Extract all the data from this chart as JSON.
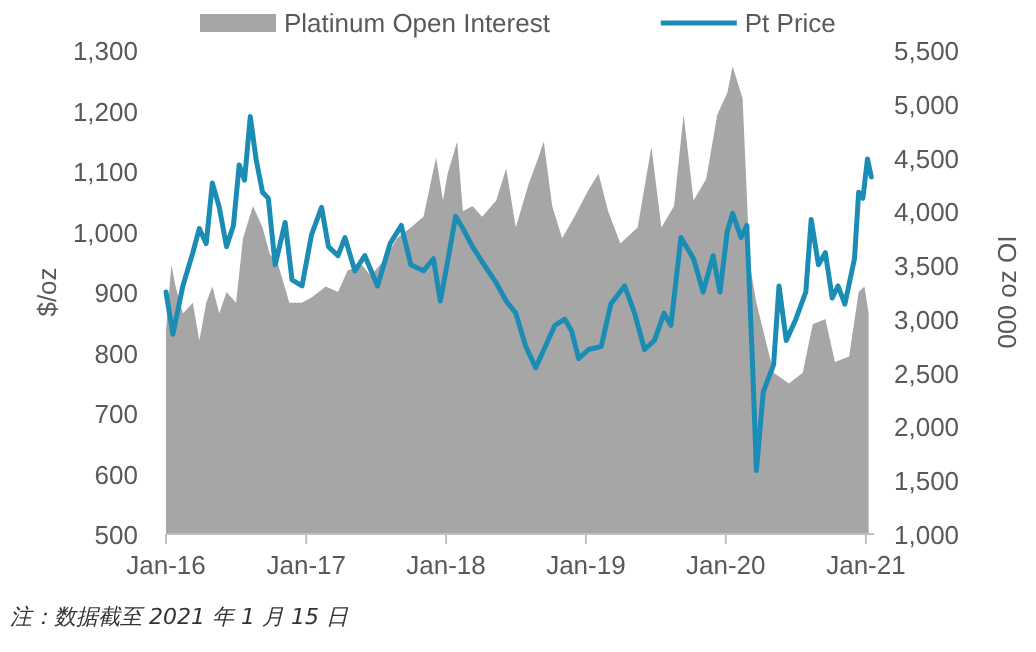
{
  "chart_data": {
    "type": "line",
    "ylabel": "$/oz",
    "y2label": "000 oz OI",
    "legend": "top",
    "annotations": [
      "注：数据截至 2021 年 1 月 15 日"
    ],
    "xlim": [
      "2016-01-01",
      "2021-01-22"
    ],
    "xticks": [
      {
        "value": "2016-01-01",
        "label": "Jan-16"
      },
      {
        "value": "2017-01-01",
        "label": "Jan-17"
      },
      {
        "value": "2018-01-01",
        "label": "Jan-18"
      },
      {
        "value": "2019-01-01",
        "label": "Jan-19"
      },
      {
        "value": "2020-01-01",
        "label": "Jan-20"
      },
      {
        "value": "2021-01-01",
        "label": "Jan-21"
      }
    ],
    "ylim": [
      500,
      1300
    ],
    "yticks": [
      500,
      600,
      700,
      800,
      900,
      {
        "value": 1000,
        "label": "1,000"
      },
      {
        "value": 1100,
        "label": "1,100"
      },
      {
        "value": 1200,
        "label": "1,200"
      },
      {
        "value": 1300,
        "label": "1,300"
      }
    ],
    "y2lim": [
      1000,
      5500
    ],
    "y2ticks": [
      {
        "value": 1000,
        "label": "1,000"
      },
      {
        "value": 1500,
        "label": "1,500"
      },
      {
        "value": 2000,
        "label": "2,000"
      },
      {
        "value": 2500,
        "label": "2,500"
      },
      {
        "value": 3000,
        "label": "3,000"
      },
      {
        "value": 3500,
        "label": "3,500"
      },
      {
        "value": 4000,
        "label": "4,000"
      },
      {
        "value": 4500,
        "label": "4,500"
      },
      {
        "value": 5000,
        "label": "5,000"
      },
      {
        "value": 5500,
        "label": "5,500"
      }
    ],
    "series": [
      {
        "name": "Platinum Open Interest",
        "type": "area",
        "axis": "y2",
        "color": "#a6a6a6",
        "x": [
          "2016-01-01",
          "2016-01-15",
          "2016-01-26",
          "2016-02-14",
          "2016-03-11",
          "2016-03-28",
          "2016-04-15",
          "2016-05-01",
          "2016-05-19",
          "2016-06-07",
          "2016-07-02",
          "2016-07-20",
          "2016-08-15",
          "2016-09-09",
          "2016-09-28",
          "2016-10-20",
          "2016-11-18",
          "2016-12-21",
          "2017-01-15",
          "2017-02-21",
          "2017-03-25",
          "2017-04-19",
          "2017-05-27",
          "2017-06-18",
          "2017-07-24",
          "2017-08-26",
          "2017-10-01",
          "2017-11-03",
          "2017-12-06",
          "2017-12-24",
          "2018-01-05",
          "2018-01-30",
          "2018-02-14",
          "2018-03-11",
          "2018-04-05",
          "2018-05-12",
          "2018-06-07",
          "2018-07-02",
          "2018-08-04",
          "2018-08-30",
          "2018-09-13",
          "2018-10-05",
          "2018-10-31",
          "2018-12-02",
          "2019-01-08",
          "2019-02-03",
          "2019-02-28",
          "2019-04-01",
          "2019-05-16",
          "2019-06-21",
          "2019-07-17",
          "2019-08-19",
          "2019-09-13",
          "2019-10-09",
          "2019-11-11",
          "2019-12-10",
          "2020-01-05",
          "2020-01-19",
          "2020-02-14",
          "2020-03-04",
          "2020-03-21",
          "2020-05-05",
          "2020-06-14",
          "2020-07-20",
          "2020-08-15",
          "2020-09-17",
          "2020-10-12",
          "2020-11-18",
          "2020-12-13",
          "2020-12-28",
          "2021-01-08"
        ],
        "values": [
          2900,
          3500,
          3300,
          3050,
          3150,
          2800,
          3150,
          3300,
          3050,
          3250,
          3150,
          3750,
          4050,
          3850,
          3600,
          3500,
          3150,
          3150,
          3200,
          3300,
          3250,
          3450,
          3500,
          3400,
          3550,
          3750,
          3850,
          3950,
          4500,
          4100,
          4350,
          4650,
          4000,
          4050,
          3950,
          4100,
          4400,
          3850,
          4250,
          4500,
          4650,
          4050,
          3750,
          3950,
          4200,
          4350,
          4000,
          3700,
          3850,
          4600,
          3850,
          4050,
          4900,
          4100,
          4300,
          4900,
          5100,
          5350,
          5050,
          3500,
          3150,
          2500,
          2400,
          2500,
          2950,
          3000,
          2600,
          2650,
          3250,
          3300,
          3050
        ]
      },
      {
        "name": "Pt Price",
        "color": "#1b8db4",
        "x": [
          "2016-01-01",
          "2016-01-19",
          "2016-02-14",
          "2016-03-11",
          "2016-03-28",
          "2016-04-15",
          "2016-05-01",
          "2016-05-19",
          "2016-06-07",
          "2016-06-25",
          "2016-07-10",
          "2016-07-24",
          "2016-08-08",
          "2016-08-23",
          "2016-09-09",
          "2016-09-24",
          "2016-10-12",
          "2016-11-07",
          "2016-11-25",
          "2016-12-21",
          "2017-01-15",
          "2017-02-10",
          "2017-02-28",
          "2017-03-25",
          "2017-04-12",
          "2017-05-08",
          "2017-06-03",
          "2017-07-06",
          "2017-08-08",
          "2017-09-06",
          "2017-10-01",
          "2017-11-03",
          "2017-11-29",
          "2017-12-17",
          "2018-01-05",
          "2018-01-26",
          "2018-02-14",
          "2018-03-11",
          "2018-04-05",
          "2018-05-12",
          "2018-06-07",
          "2018-07-02",
          "2018-07-28",
          "2018-08-23",
          "2018-09-17",
          "2018-10-12",
          "2018-11-07",
          "2018-11-25",
          "2018-12-13",
          "2019-01-08",
          "2019-02-10",
          "2019-03-07",
          "2019-04-12",
          "2019-05-08",
          "2019-06-03",
          "2019-06-29",
          "2019-07-24",
          "2019-08-11",
          "2019-09-06",
          "2019-10-09",
          "2019-11-03",
          "2019-11-29",
          "2019-12-17",
          "2020-01-05",
          "2020-01-19",
          "2020-02-10",
          "2020-02-25",
          "2020-03-11",
          "2020-03-21",
          "2020-04-08",
          "2020-05-05",
          "2020-05-19",
          "2020-06-07",
          "2020-07-02",
          "2020-07-28",
          "2020-08-11",
          "2020-08-30",
          "2020-09-17",
          "2020-10-05",
          "2020-10-20",
          "2020-11-07",
          "2020-12-02",
          "2020-12-13",
          "2020-12-24",
          "2021-01-05",
          "2021-01-15"
        ],
        "values": [
          900,
          830,
          910,
          965,
          1005,
          980,
          1080,
          1040,
          975,
          1010,
          1110,
          1085,
          1190,
          1120,
          1065,
          1055,
          945,
          1015,
          920,
          910,
          995,
          1040,
          975,
          960,
          990,
          935,
          960,
          910,
          980,
          1010,
          945,
          935,
          955,
          885,
          950,
          1025,
          1005,
          975,
          950,
          915,
          885,
          865,
          810,
          775,
          810,
          845,
          855,
          835,
          790,
          805,
          810,
          880,
          910,
          865,
          805,
          820,
          865,
          845,
          990,
          955,
          900,
          960,
          900,
          1000,
          1030,
          990,
          1010,
          780,
          605,
          735,
          780,
          910,
          820,
          855,
          900,
          1020,
          945,
          965,
          890,
          910,
          880,
          955,
          1065,
          1055,
          1120,
          1090
        ]
      }
    ]
  }
}
